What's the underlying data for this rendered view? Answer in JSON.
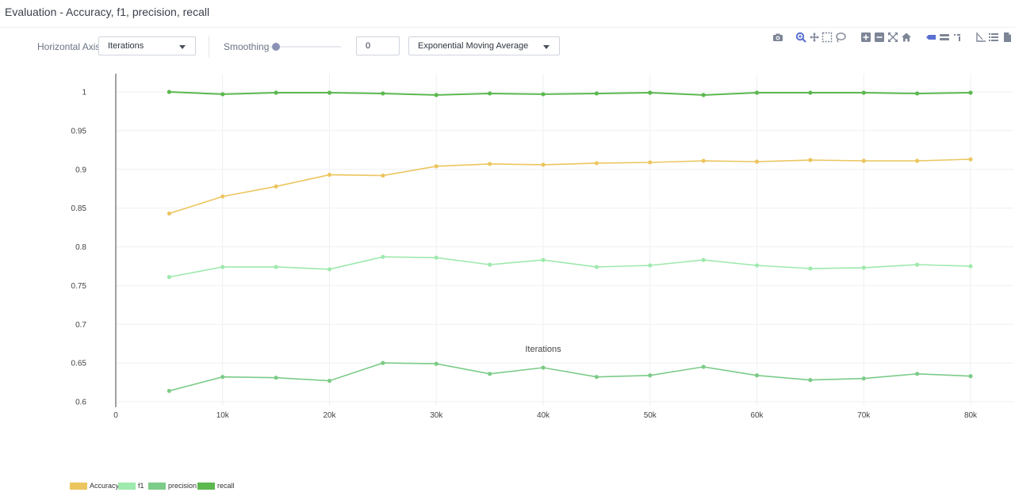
{
  "header": {
    "title": "Evaluation - Accuracy, f1, precision, recall"
  },
  "controls": {
    "horizontal_axis_label": "Horizontal Axis",
    "horizontal_axis_value": "Iterations",
    "smoothing_label": "Smoothing",
    "smoothing_value": 0,
    "smoothing_input": "0",
    "smoothing_method": "Exponential Moving Average"
  },
  "modebar": [
    "camera-icon",
    "zoom-icon",
    "pan-icon",
    "box-select-icon",
    "lasso-select-icon",
    "zoom-in-icon",
    "zoom-out-icon",
    "autoscale-icon",
    "reset-axes-icon",
    "spike-lines-icon",
    "hover-closest-icon",
    "hover-compare-icon",
    "logo-icon",
    "list-icon",
    "file-icon"
  ],
  "chart_data": {
    "type": "line",
    "title": "",
    "xlabel": "Iterations",
    "ylabel": "",
    "xlim": [
      0,
      81000
    ],
    "ylim": [
      0.6,
      1.01
    ],
    "grid": true,
    "legend_position": "bottom-left",
    "x_ticks": [
      0,
      10000,
      20000,
      30000,
      40000,
      50000,
      60000,
      70000,
      80000
    ],
    "x_tick_labels": [
      "0",
      "10k",
      "20k",
      "30k",
      "40k",
      "50k",
      "60k",
      "70k",
      "80k"
    ],
    "y_ticks": [
      0.6,
      0.65,
      0.7,
      0.75,
      0.8,
      0.85,
      0.9,
      0.95,
      1
    ],
    "y_tick_labels": [
      "0.6",
      "0.65",
      "0.7",
      "0.75",
      "0.8",
      "0.85",
      "0.9",
      "0.95",
      "1"
    ],
    "x": [
      5000,
      10000,
      15000,
      20000,
      25000,
      30000,
      35000,
      40000,
      45000,
      50000,
      55000,
      60000,
      65000,
      70000,
      75000,
      80000
    ],
    "series": [
      {
        "name": "Accuracy",
        "color": "#ecc55f",
        "values": [
          0.843,
          0.865,
          0.878,
          0.893,
          0.892,
          0.904,
          0.907,
          0.906,
          0.908,
          0.909,
          0.911,
          0.91,
          0.912,
          0.911,
          0.911,
          0.913
        ]
      },
      {
        "name": "f1",
        "color": "#9ee9ad",
        "values": [
          0.761,
          0.774,
          0.774,
          0.771,
          0.787,
          0.786,
          0.777,
          0.783,
          0.774,
          0.776,
          0.783,
          0.776,
          0.772,
          0.773,
          0.777,
          0.775
        ]
      },
      {
        "name": "precision",
        "color": "#7ccb88",
        "values": [
          0.614,
          0.632,
          0.631,
          0.627,
          0.65,
          0.649,
          0.636,
          0.644,
          0.632,
          0.634,
          0.645,
          0.634,
          0.628,
          0.63,
          0.636,
          0.633
        ]
      },
      {
        "name": "recall",
        "color": "#5cb84f",
        "values": [
          1.0,
          0.997,
          0.999,
          0.999,
          0.998,
          0.996,
          0.998,
          0.997,
          0.998,
          0.999,
          0.996,
          0.999,
          0.999,
          0.999,
          0.998,
          0.999
        ]
      }
    ]
  }
}
